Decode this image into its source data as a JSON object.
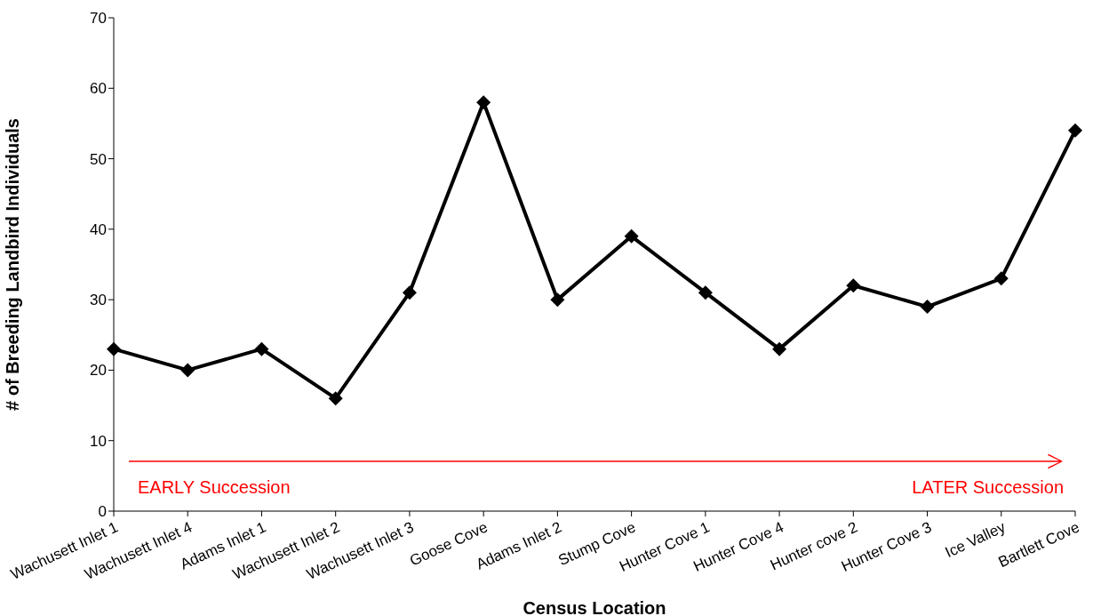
{
  "chart_data": {
    "type": "line",
    "xlabel": "Census Location",
    "ylabel": "# of Breeding Landbird Individuals",
    "categories": [
      "Wachusett Inlet 1",
      "Wachusett Inlet 4",
      "Adams Inlet 1",
      "Wachusett Inlet 2",
      "Wachusett Inlet 3",
      "Goose Cove",
      "Adams Inlet 2",
      "Stump Cove",
      "Hunter Cove 1",
      "Hunter Cove 4",
      "Hunter cove 2",
      "Hunter Cove 3",
      "Ice Valley",
      "Bartlett Cove"
    ],
    "series": [
      {
        "color": "#000000",
        "values": [
          23,
          20,
          23,
          16,
          31,
          58,
          30,
          39,
          31,
          23,
          32,
          29,
          33,
          54
        ]
      }
    ],
    "ylim": [
      0,
      70
    ],
    "yticks": [
      0,
      10,
      20,
      30,
      40,
      50,
      60,
      70
    ],
    "grid": false,
    "legend": false,
    "marker": "diamond",
    "line_style": "solid",
    "annotations": [
      "EARLY Succession",
      "LATER Succession"
    ]
  }
}
